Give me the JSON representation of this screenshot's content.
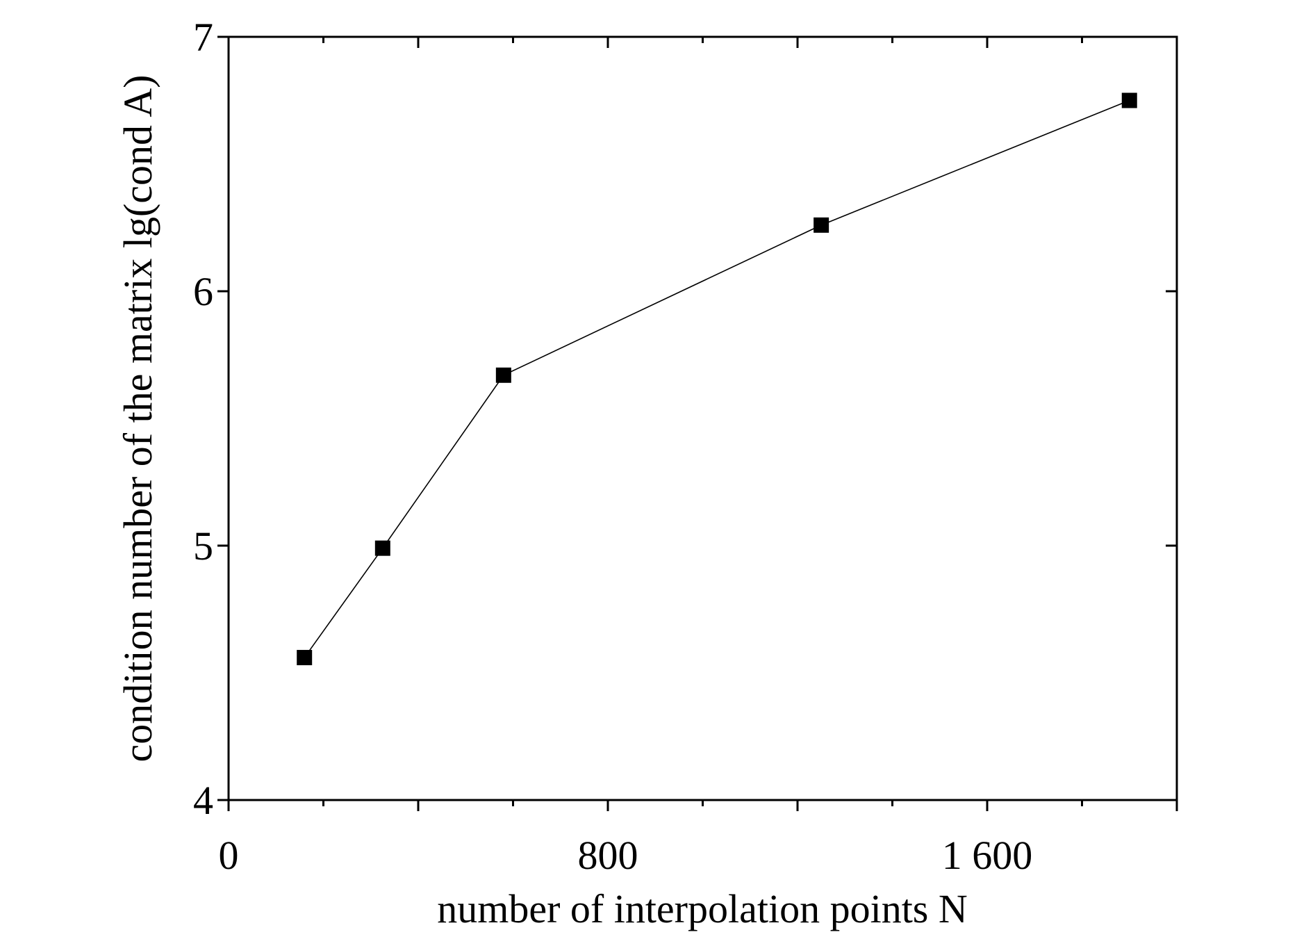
{
  "chart_data": {
    "type": "line",
    "xlabel": "number of interpolation points N",
    "ylabel": "condition number of the matrix lg(cond A)",
    "x": [
      160,
      325,
      580,
      1250,
      1900
    ],
    "series": [
      {
        "name": "lg(cond A)",
        "color": "#000000",
        "values": [
          4.56,
          4.99,
          5.67,
          6.26,
          6.75
        ]
      }
    ],
    "xlim": [
      0,
      2000
    ],
    "xticks": [
      0,
      800,
      {
        "value": 1600,
        "label": "1 600"
      }
    ],
    "xminorticks": [
      200,
      400,
      600,
      1000,
      1200,
      1400,
      1800,
      2000
    ],
    "ylim": [
      4,
      7
    ],
    "yticks": [
      4,
      5,
      6,
      7
    ],
    "marker": "square",
    "grid": false
  }
}
